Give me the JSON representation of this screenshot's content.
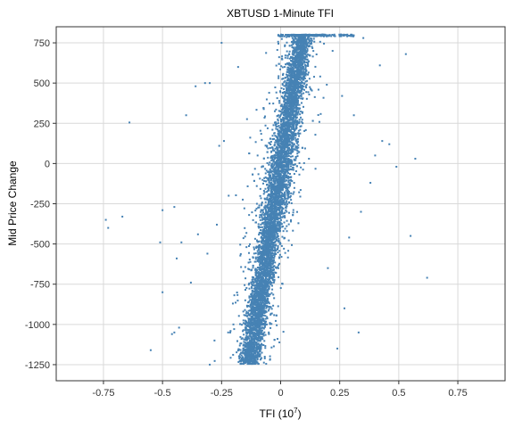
{
  "chart_data": {
    "type": "scatter",
    "title": "XBTUSD 1-Minute TFI",
    "xlabel": "TFI (10",
    "xlabel_sup": "7",
    "xlabel_close": ")",
    "ylabel": "Mid Price Change",
    "xlim": [
      -0.95,
      0.95
    ],
    "ylim": [
      -1350,
      850
    ],
    "xticks": [
      -0.75,
      -0.5,
      -0.25,
      0,
      0.25,
      0.5,
      0.75
    ],
    "xtick_labels": [
      "-0.75",
      "-0.5",
      "-0.25",
      "0",
      "0.25",
      "0.5",
      "0.75"
    ],
    "yticks": [
      -1250,
      -1000,
      -750,
      -500,
      -250,
      0,
      250,
      500,
      750
    ],
    "ytick_labels": [
      "-1250",
      "-1000",
      "-750",
      "-500",
      "-250",
      "0",
      "250",
      "500",
      "750"
    ],
    "grid": true,
    "marker_color": "#4682b4",
    "points": [
      [
        -0.64,
        255
      ],
      [
        -0.74,
        -350
      ],
      [
        -0.73,
        -400
      ],
      [
        -0.67,
        -330
      ],
      [
        -0.55,
        -1160
      ],
      [
        -0.51,
        -490
      ],
      [
        -0.5,
        -800
      ],
      [
        -0.5,
        -290
      ],
      [
        -0.46,
        -1060
      ],
      [
        -0.45,
        -1050
      ],
      [
        -0.43,
        -1020
      ],
      [
        -0.45,
        -270
      ],
      [
        -0.42,
        -490
      ],
      [
        -0.44,
        -590
      ],
      [
        -0.4,
        300
      ],
      [
        -0.38,
        -740
      ],
      [
        -0.36,
        480
      ],
      [
        -0.35,
        -440
      ],
      [
        -0.32,
        500
      ],
      [
        -0.3,
        500
      ],
      [
        -0.3,
        -1250
      ],
      [
        -0.31,
        -560
      ],
      [
        -0.28,
        -1100
      ],
      [
        -0.27,
        -380
      ],
      [
        -0.25,
        750
      ],
      [
        -0.26,
        110
      ],
      [
        -0.24,
        140
      ],
      [
        -0.22,
        -200
      ],
      [
        -0.2,
        -1000
      ],
      [
        -0.18,
        600
      ],
      [
        0.62,
        -710
      ],
      [
        0.57,
        30
      ],
      [
        0.55,
        -450
      ],
      [
        0.53,
        680
      ],
      [
        0.49,
        -20
      ],
      [
        0.46,
        120
      ],
      [
        0.43,
        140
      ],
      [
        0.42,
        610
      ],
      [
        0.4,
        50
      ],
      [
        0.38,
        -120
      ],
      [
        0.35,
        780
      ],
      [
        0.34,
        -300
      ],
      [
        0.33,
        -1050
      ],
      [
        0.31,
        300
      ],
      [
        0.29,
        -460
      ],
      [
        0.27,
        -900
      ],
      [
        0.26,
        420
      ],
      [
        0.24,
        -1150
      ],
      [
        0.22,
        700
      ],
      [
        0.2,
        -650
      ]
    ]
  }
}
